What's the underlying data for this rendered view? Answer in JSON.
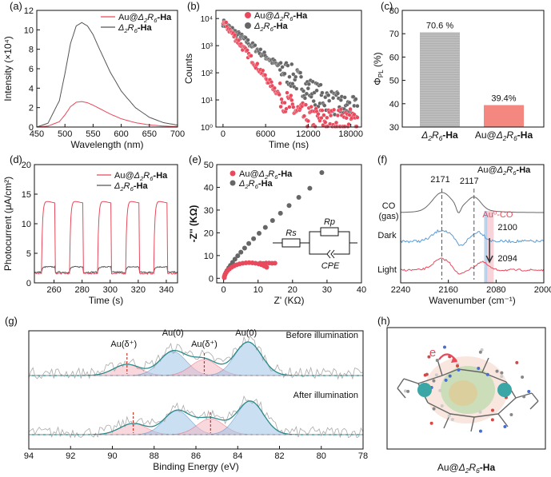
{
  "panels": {
    "a": {
      "tag": "(a)",
      "chart_data": {
        "type": "line",
        "xlabel": "Wavelength (nm)",
        "ylabel": "Intensity (×10⁴)",
        "xlim": [
          450,
          700
        ],
        "ylim": [
          0,
          12
        ],
        "xticks": [
          "450",
          "500",
          "550",
          "600",
          "650",
          "700"
        ],
        "yticks": [
          "0",
          "2",
          "4",
          "6",
          "8",
          "10",
          "12"
        ],
        "series": [
          {
            "name": "Au@Δ2R6-Ha",
            "color": "#e8495c",
            "x": [
              450,
              470,
              490,
              500,
              510,
              520,
              530,
              540,
              550,
              560,
              580,
              600,
              625,
              650,
              675,
              700
            ],
            "y": [
              0.0,
              0.1,
              0.55,
              1.25,
              2.1,
              2.55,
              2.62,
              2.5,
              2.25,
              1.95,
              1.35,
              0.85,
              0.45,
              0.22,
              0.1,
              0.05
            ]
          },
          {
            "name": "Δ2R6-Ha",
            "color": "#555555",
            "x": [
              450,
              470,
              490,
              500,
              510,
              520,
              530,
              540,
              550,
              560,
              580,
              600,
              625,
              650,
              675,
              700
            ],
            "y": [
              0.0,
              0.4,
              2.7,
              5.5,
              8.6,
              10.4,
              10.75,
              10.4,
              9.5,
              8.2,
              5.7,
              3.7,
              2.0,
              1.0,
              0.45,
              0.2
            ]
          }
        ]
      },
      "legend": [
        {
          "pre": "Au@",
          "mid": "Δ2R6",
          "post": "-Ha"
        },
        {
          "pre": "",
          "mid": "Δ2R6",
          "post": "-Ha"
        }
      ]
    },
    "b": {
      "tag": "(b)",
      "chart_data": {
        "type": "scatter",
        "xlabel": "Time (ns)",
        "ylabel": "Counts",
        "xlim": [
          -1000,
          19500
        ],
        "ylog": true,
        "ylim_exp": [
          0,
          4.3
        ],
        "xticks": [
          "0",
          "6000",
          "12000",
          "18000"
        ],
        "yticks": [
          "10⁰",
          "10¹",
          "10²",
          "10³",
          "10⁴"
        ],
        "series": [
          {
            "name": "Au@Δ2R6-Ha",
            "color": "#e8495c",
            "decay_ns": 1250,
            "baseline_exp": 0.25,
            "peak_exp": 3.9
          },
          {
            "name": "Δ2R6-Ha",
            "color": "#666666",
            "decay_ns": 2100,
            "baseline_exp": 0.55,
            "peak_exp": 3.85
          }
        ]
      }
    },
    "c": {
      "tag": "(c)",
      "chart_data": {
        "type": "bar",
        "ylabel": "ΦPL (%)",
        "ylim": [
          30,
          80
        ],
        "yticks": [
          "30",
          "40",
          "50",
          "60",
          "70",
          "80"
        ],
        "categories": [
          "Δ2R6-Ha",
          "Au@Δ2R6-Ha"
        ],
        "values": [
          70.6,
          39.4
        ],
        "labels": [
          "70.6 %",
          "39.4%"
        ],
        "colors": [
          "#bdbdbd",
          "#f4877f"
        ]
      }
    },
    "d": {
      "tag": "(d)",
      "chart_data": {
        "type": "line",
        "xlabel": "Time (s)",
        "ylabel": "Photocurrent  (μA/cm²)",
        "xlim": [
          246,
          348
        ],
        "ylim": [
          0,
          20
        ],
        "xticks": [
          "260",
          "280",
          "300",
          "320",
          "340"
        ],
        "yticks": [
          "0",
          "5",
          "10",
          "15",
          "20"
        ],
        "on_times": [
          251,
          271,
          291,
          311,
          331
        ],
        "on_duration": 10,
        "series": [
          {
            "name": "Au@Δ2R6-Ha",
            "color": "#e8495c",
            "on": 14.0,
            "off": 1.6
          },
          {
            "name": "Δ2R6-Ha",
            "color": "#555555",
            "on": 2.7,
            "off": 1.8
          }
        ]
      }
    },
    "e": {
      "tag": "(e)",
      "chart_data": {
        "type": "scatter",
        "xlabel": "Z' (KΩ)",
        "ylabel": "-Z'' (KΩ)",
        "xlim": [
          -2,
          40
        ],
        "ylim": [
          -2,
          50
        ],
        "xticks": [
          "0",
          "10",
          "20",
          "30",
          "40"
        ],
        "yticks": [
          "0",
          "10",
          "20",
          "30",
          "40",
          "50"
        ],
        "series": [
          {
            "name": "Au@Δ2R6-Ha",
            "color": "#e8495c"
          },
          {
            "name": "Δ2R6-Ha",
            "color": "#666666"
          }
        ],
        "circuit": {
          "rs": "Rs",
          "rp": "Rp",
          "cpe": "CPE"
        }
      }
    },
    "f": {
      "tag": "(f)",
      "chart_data": {
        "type": "line",
        "xlabel": "Wavenumber (cm⁻¹)",
        "xlim": [
          2240,
          2000
        ],
        "xticks": [
          "2240",
          "2160",
          "2080",
          "2000"
        ],
        "series": [
          {
            "name": "CO (gas)",
            "color": "#666666"
          },
          {
            "name": "Dark",
            "color": "#5b9bd5"
          },
          {
            "name": "Light",
            "color": "#e8495c"
          }
        ],
        "annotations": [
          "2171",
          "2117",
          "2100",
          "2094",
          "Au⁰-CO"
        ],
        "title_pre": "Au@",
        "title_mid": "Δ2R6",
        "title_post": "-Ha"
      }
    },
    "g": {
      "tag": "(g)",
      "chart_data": {
        "type": "line",
        "xlabel": "Binding Energy (eV)",
        "xlim": [
          94,
          78
        ],
        "xticks": [
          "94",
          "92",
          "90",
          "88",
          "86",
          "84",
          "82",
          "80",
          "78"
        ],
        "series": [
          {
            "name": "Before illumination"
          },
          {
            "name": "After illumination"
          }
        ],
        "peak_labels": [
          "Au(δ⁺)",
          "Au(0)",
          "Au(δ⁺)",
          "Au(0)"
        ],
        "peaks_before": [
          89.3,
          87.1,
          85.6,
          83.5
        ],
        "peaks_after": [
          89.0,
          86.9,
          85.3,
          83.4
        ]
      }
    },
    "h": {
      "tag": "(h)",
      "caption_pre": "Au@",
      "caption_mid": "Δ2R6",
      "caption_post": "-Ha",
      "electron": "e"
    }
  }
}
